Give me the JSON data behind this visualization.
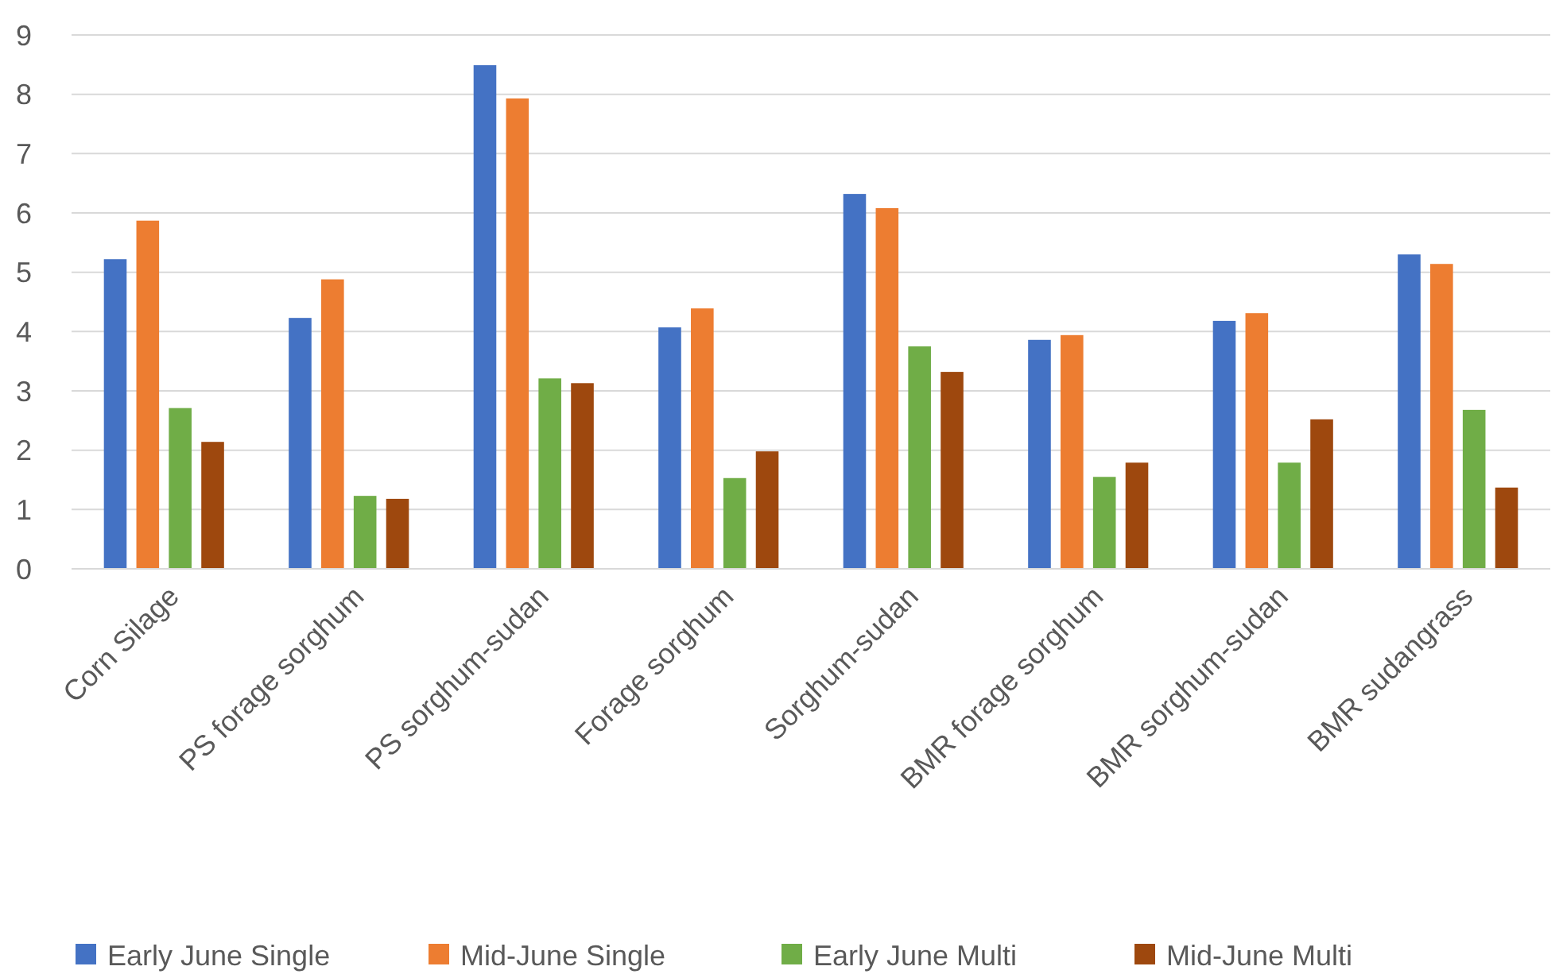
{
  "chart_data": {
    "type": "bar",
    "categories": [
      "Corn Silage",
      "PS forage sorghum",
      "PS sorghum-sudan",
      "Forage sorghum",
      "Sorghum-sudan",
      "BMR forage sorghum",
      "BMR sorghum-sudan",
      "BMR sudangrass"
    ],
    "series": [
      {
        "name": "Early June Single",
        "color": "#4472c4",
        "values": [
          5.22,
          4.23,
          8.49,
          4.07,
          6.32,
          3.86,
          4.18,
          5.3
        ]
      },
      {
        "name": "Mid-June Single",
        "color": "#ed7d31",
        "values": [
          5.87,
          4.88,
          7.93,
          4.39,
          6.08,
          3.94,
          4.31,
          5.14
        ]
      },
      {
        "name": "Early June Multi",
        "color": "#70ad47",
        "values": [
          2.71,
          1.23,
          3.21,
          1.53,
          3.75,
          1.55,
          1.79,
          2.68
        ]
      },
      {
        "name": "Mid-June Multi",
        "color": "#9e480e",
        "values": [
          2.14,
          1.18,
          3.13,
          1.98,
          3.32,
          1.79,
          2.52,
          1.37
        ]
      }
    ],
    "ylim": [
      0,
      9
    ],
    "yticks": [
      0,
      1,
      2,
      3,
      4,
      5,
      6,
      7,
      8,
      9
    ],
    "grid": "y",
    "legend": "bottom"
  }
}
